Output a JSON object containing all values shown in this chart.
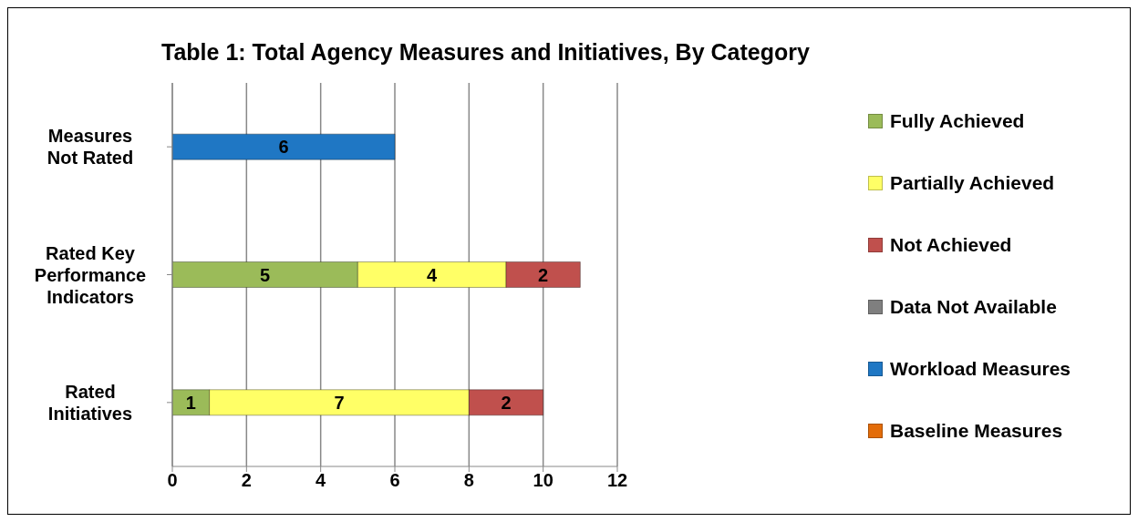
{
  "chart_data": {
    "type": "bar",
    "orientation": "horizontal",
    "stacked": true,
    "title": "Table 1: Total Agency Measures and Initiatives, By Category",
    "categories": [
      "Measures Not Rated",
      "Rated Key Performance Indicators",
      "Rated Initiatives"
    ],
    "series": [
      {
        "name": "Fully Achieved",
        "color": "#9bbb59",
        "values": [
          null,
          5,
          1
        ]
      },
      {
        "name": "Partially Achieved",
        "color": "#ffff66",
        "values": [
          null,
          4,
          7
        ]
      },
      {
        "name": "Not Achieved",
        "color": "#c0504d",
        "values": [
          null,
          2,
          2
        ]
      },
      {
        "name": "Data Not Available",
        "color": "#7f7f7f",
        "values": [
          null,
          null,
          null
        ]
      },
      {
        "name": "Workload Measures",
        "color": "#1f77c4",
        "values": [
          6,
          null,
          null
        ]
      },
      {
        "name": "Baseline Measures",
        "color": "#e36c09",
        "values": [
          null,
          null,
          null
        ]
      }
    ],
    "xlim": [
      0,
      12
    ],
    "xticks": [
      0,
      2,
      4,
      6,
      8,
      10,
      12
    ],
    "grid": "x",
    "legend": "right",
    "data_labels": true
  }
}
